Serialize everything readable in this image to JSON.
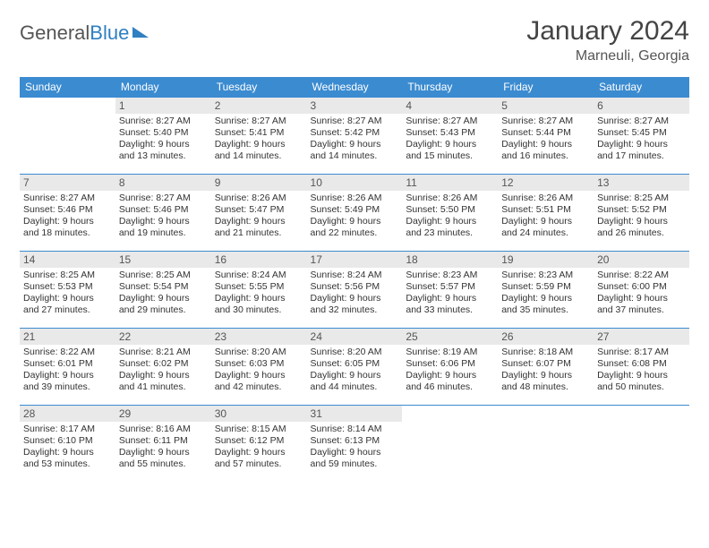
{
  "brand": {
    "name_a": "General",
    "name_b": "Blue"
  },
  "title": "January 2024",
  "location": "Marneuli, Georgia",
  "colors": {
    "header_bg": "#3b8bd0",
    "header_fg": "#ffffff",
    "daynum_bg": "#e9e9e9",
    "border": "#3b8bd0",
    "text": "#333333",
    "brand_gray": "#555555",
    "brand_blue": "#2f7fc2"
  },
  "typography": {
    "title_fontsize": 30,
    "location_fontsize": 16,
    "header_fontsize": 12,
    "daynum_fontsize": 12,
    "cell_fontsize": 10.5
  },
  "day_headers": [
    "Sunday",
    "Monday",
    "Tuesday",
    "Wednesday",
    "Thursday",
    "Friday",
    "Saturday"
  ],
  "weeks": [
    [
      null,
      {
        "n": "1",
        "sunrise": "8:27 AM",
        "sunset": "5:40 PM",
        "daylight": "9 hours and 13 minutes."
      },
      {
        "n": "2",
        "sunrise": "8:27 AM",
        "sunset": "5:41 PM",
        "daylight": "9 hours and 14 minutes."
      },
      {
        "n": "3",
        "sunrise": "8:27 AM",
        "sunset": "5:42 PM",
        "daylight": "9 hours and 14 minutes."
      },
      {
        "n": "4",
        "sunrise": "8:27 AM",
        "sunset": "5:43 PM",
        "daylight": "9 hours and 15 minutes."
      },
      {
        "n": "5",
        "sunrise": "8:27 AM",
        "sunset": "5:44 PM",
        "daylight": "9 hours and 16 minutes."
      },
      {
        "n": "6",
        "sunrise": "8:27 AM",
        "sunset": "5:45 PM",
        "daylight": "9 hours and 17 minutes."
      }
    ],
    [
      {
        "n": "7",
        "sunrise": "8:27 AM",
        "sunset": "5:46 PM",
        "daylight": "9 hours and 18 minutes."
      },
      {
        "n": "8",
        "sunrise": "8:27 AM",
        "sunset": "5:46 PM",
        "daylight": "9 hours and 19 minutes."
      },
      {
        "n": "9",
        "sunrise": "8:26 AM",
        "sunset": "5:47 PM",
        "daylight": "9 hours and 21 minutes."
      },
      {
        "n": "10",
        "sunrise": "8:26 AM",
        "sunset": "5:49 PM",
        "daylight": "9 hours and 22 minutes."
      },
      {
        "n": "11",
        "sunrise": "8:26 AM",
        "sunset": "5:50 PM",
        "daylight": "9 hours and 23 minutes."
      },
      {
        "n": "12",
        "sunrise": "8:26 AM",
        "sunset": "5:51 PM",
        "daylight": "9 hours and 24 minutes."
      },
      {
        "n": "13",
        "sunrise": "8:25 AM",
        "sunset": "5:52 PM",
        "daylight": "9 hours and 26 minutes."
      }
    ],
    [
      {
        "n": "14",
        "sunrise": "8:25 AM",
        "sunset": "5:53 PM",
        "daylight": "9 hours and 27 minutes."
      },
      {
        "n": "15",
        "sunrise": "8:25 AM",
        "sunset": "5:54 PM",
        "daylight": "9 hours and 29 minutes."
      },
      {
        "n": "16",
        "sunrise": "8:24 AM",
        "sunset": "5:55 PM",
        "daylight": "9 hours and 30 minutes."
      },
      {
        "n": "17",
        "sunrise": "8:24 AM",
        "sunset": "5:56 PM",
        "daylight": "9 hours and 32 minutes."
      },
      {
        "n": "18",
        "sunrise": "8:23 AM",
        "sunset": "5:57 PM",
        "daylight": "9 hours and 33 minutes."
      },
      {
        "n": "19",
        "sunrise": "8:23 AM",
        "sunset": "5:59 PM",
        "daylight": "9 hours and 35 minutes."
      },
      {
        "n": "20",
        "sunrise": "8:22 AM",
        "sunset": "6:00 PM",
        "daylight": "9 hours and 37 minutes."
      }
    ],
    [
      {
        "n": "21",
        "sunrise": "8:22 AM",
        "sunset": "6:01 PM",
        "daylight": "9 hours and 39 minutes."
      },
      {
        "n": "22",
        "sunrise": "8:21 AM",
        "sunset": "6:02 PM",
        "daylight": "9 hours and 41 minutes."
      },
      {
        "n": "23",
        "sunrise": "8:20 AM",
        "sunset": "6:03 PM",
        "daylight": "9 hours and 42 minutes."
      },
      {
        "n": "24",
        "sunrise": "8:20 AM",
        "sunset": "6:05 PM",
        "daylight": "9 hours and 44 minutes."
      },
      {
        "n": "25",
        "sunrise": "8:19 AM",
        "sunset": "6:06 PM",
        "daylight": "9 hours and 46 minutes."
      },
      {
        "n": "26",
        "sunrise": "8:18 AM",
        "sunset": "6:07 PM",
        "daylight": "9 hours and 48 minutes."
      },
      {
        "n": "27",
        "sunrise": "8:17 AM",
        "sunset": "6:08 PM",
        "daylight": "9 hours and 50 minutes."
      }
    ],
    [
      {
        "n": "28",
        "sunrise": "8:17 AM",
        "sunset": "6:10 PM",
        "daylight": "9 hours and 53 minutes."
      },
      {
        "n": "29",
        "sunrise": "8:16 AM",
        "sunset": "6:11 PM",
        "daylight": "9 hours and 55 minutes."
      },
      {
        "n": "30",
        "sunrise": "8:15 AM",
        "sunset": "6:12 PM",
        "daylight": "9 hours and 57 minutes."
      },
      {
        "n": "31",
        "sunrise": "8:14 AM",
        "sunset": "6:13 PM",
        "daylight": "9 hours and 59 minutes."
      },
      null,
      null,
      null
    ]
  ],
  "labels": {
    "sunrise": "Sunrise:",
    "sunset": "Sunset:",
    "daylight": "Daylight:"
  }
}
